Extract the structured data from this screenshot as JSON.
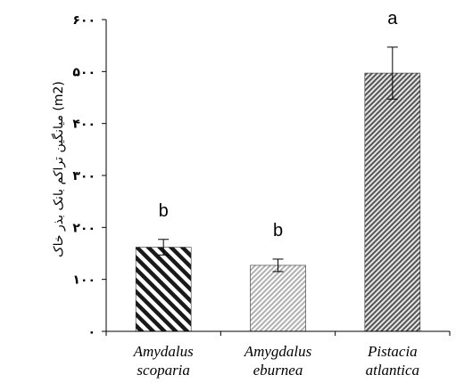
{
  "chart_data": {
    "type": "bar",
    "ylabel": "میانگین تراکم بانک بذر خاک (m2)",
    "y_ticks": [
      "۰",
      "۱۰۰",
      "۲۰۰",
      "۳۰۰",
      "۴۰۰",
      "۵۰۰",
      "۶۰۰"
    ],
    "ylim": [
      0,
      600
    ],
    "grid": false,
    "categories": [
      {
        "line1": "Amydalus",
        "line2": "scoparia"
      },
      {
        "line1": "Amygdalus",
        "line2": "eburnea"
      },
      {
        "line1": "Pistacia",
        "line2": "atlantica"
      }
    ],
    "values": [
      162,
      127,
      497
    ],
    "error": [
      15,
      12,
      50
    ],
    "significance_labels": [
      "b",
      "b",
      "a"
    ],
    "patterns": [
      "back-diagonal",
      "light-dotted",
      "dense-diagonal"
    ]
  }
}
